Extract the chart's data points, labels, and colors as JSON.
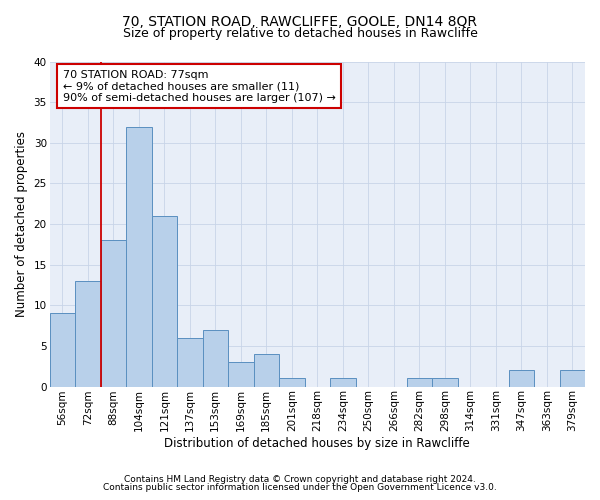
{
  "title": "70, STATION ROAD, RAWCLIFFE, GOOLE, DN14 8QR",
  "subtitle": "Size of property relative to detached houses in Rawcliffe",
  "xlabel": "Distribution of detached houses by size in Rawcliffe",
  "ylabel": "Number of detached properties",
  "footnote1": "Contains HM Land Registry data © Crown copyright and database right 2024.",
  "footnote2": "Contains public sector information licensed under the Open Government Licence v3.0.",
  "categories": [
    "56sqm",
    "72sqm",
    "88sqm",
    "104sqm",
    "121sqm",
    "137sqm",
    "153sqm",
    "169sqm",
    "185sqm",
    "201sqm",
    "218sqm",
    "234sqm",
    "250sqm",
    "266sqm",
    "282sqm",
    "298sqm",
    "314sqm",
    "331sqm",
    "347sqm",
    "363sqm",
    "379sqm"
  ],
  "values": [
    9,
    13,
    18,
    32,
    21,
    6,
    7,
    3,
    4,
    1,
    0,
    1,
    0,
    0,
    1,
    1,
    0,
    0,
    2,
    0,
    2
  ],
  "bar_color": "#b8d0ea",
  "bar_edge_color": "#5a8fc0",
  "bar_edge_width": 0.7,
  "red_line_x": 1.5,
  "annotation_line1": "70 STATION ROAD: 77sqm",
  "annotation_line2": "← 9% of detached houses are smaller (11)",
  "annotation_line3": "90% of semi-detached houses are larger (107) →",
  "annotation_box_color": "#ffffff",
  "annotation_box_edge": "#cc0000",
  "ylim": [
    0,
    40
  ],
  "yticks": [
    0,
    5,
    10,
    15,
    20,
    25,
    30,
    35,
    40
  ],
  "grid_color": "#c8d4e8",
  "background_color": "#e8eef8",
  "title_fontsize": 10,
  "subtitle_fontsize": 9,
  "axis_label_fontsize": 8.5,
  "tick_fontsize": 7.5,
  "annotation_fontsize": 8,
  "footnote_fontsize": 6.5
}
